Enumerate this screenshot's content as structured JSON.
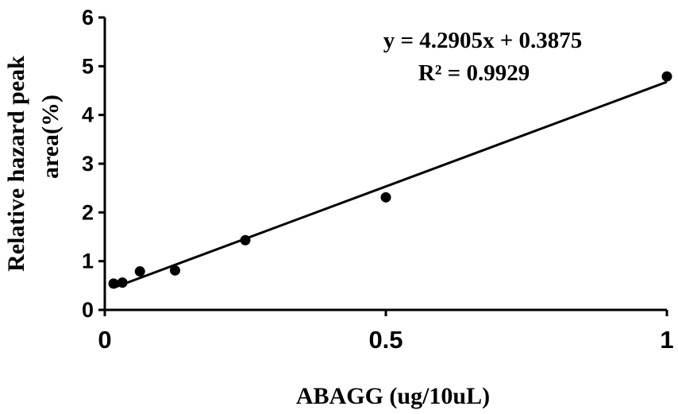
{
  "chart_data": {
    "type": "scatter",
    "xlabel": "ABAGG (ug/10uL)",
    "ylabel_lines": [
      "Relative hazard peak",
      "area(%)"
    ],
    "xlim": [
      0,
      1
    ],
    "ylim": [
      0,
      6
    ],
    "x_ticks": [
      0,
      0.5,
      1
    ],
    "y_ticks": [
      0,
      1,
      2,
      3,
      4,
      5,
      6
    ],
    "x_tick_labels": [
      "0",
      "0.5",
      "1"
    ],
    "y_tick_labels": [
      "0",
      "1",
      "2",
      "3",
      "4",
      "5",
      "6"
    ],
    "grid": false,
    "series": [
      {
        "marker_color": "#000000",
        "points": [
          {
            "x": 0.0156,
            "y": 0.54
          },
          {
            "x": 0.0313,
            "y": 0.56
          },
          {
            "x": 0.0625,
            "y": 0.79
          },
          {
            "x": 0.125,
            "y": 0.81
          },
          {
            "x": 0.25,
            "y": 1.43
          },
          {
            "x": 0.5,
            "y": 2.31
          },
          {
            "x": 1.0,
            "y": 4.79
          }
        ]
      }
    ],
    "trendline": {
      "type": "linear",
      "slope": 4.2905,
      "intercept": 0.3875,
      "x_range": [
        0.0156,
        1.0
      ],
      "equation_label": "y = 4.2905x + 0.3875",
      "r2_label": "R² = 0.9929"
    }
  }
}
